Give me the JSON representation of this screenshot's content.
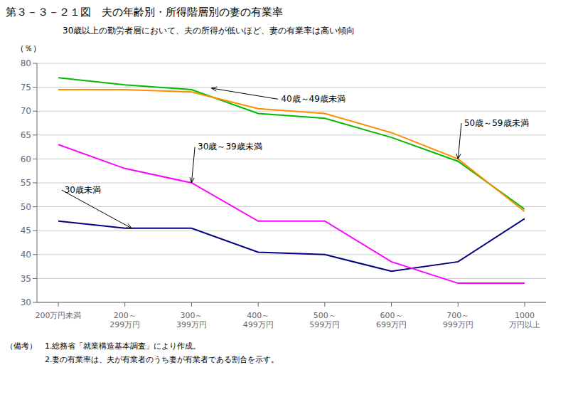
{
  "chart_data": {
    "type": "line",
    "title": "第３－３－２１図　夫の年齢別・所得階層別の妻の有業率",
    "subtitle": "30歳以上の勤労者層において、夫の所得が低いほど、妻の有業率は高い傾向",
    "y_label": "（％）",
    "notes": [
      "（備考）　1.総務省「就業構造基本調査」により作成。",
      "　　　　　2.妻の有業率は、夫が有業者のうち妻が有業者である割合を示す。"
    ],
    "categories": [
      "200万円未満",
      "200～\n299万円",
      "300～\n399万円",
      "400～\n499万円",
      "500～\n599万円",
      "600～\n699万円",
      "700～\n999万円",
      "1000\n万円以上"
    ],
    "ylim": [
      30,
      80
    ],
    "yticks": [
      30,
      35,
      40,
      45,
      50,
      55,
      60,
      65,
      70,
      75,
      80
    ],
    "grid": "y",
    "series": [
      {
        "name": "30歳未満",
        "color": "#000080",
        "values": [
          47.0,
          45.5,
          45.5,
          40.5,
          40.0,
          36.5,
          38.5,
          47.5
        ]
      },
      {
        "name": "30歳～39歳未満",
        "color": "#FF00FF",
        "values": [
          63.0,
          58.0,
          55.0,
          47.0,
          47.0,
          38.5,
          34.0,
          34.0
        ]
      },
      {
        "name": "40歳～49歳未満",
        "color": "#00BB00",
        "values": [
          77.0,
          75.5,
          74.5,
          69.5,
          68.5,
          64.5,
          59.5,
          49.5
        ]
      },
      {
        "name": "50歳～59歳未満",
        "color": "#FF8C00",
        "values": [
          74.5,
          74.5,
          74.0,
          70.5,
          69.5,
          65.5,
          60.0,
          49.0
        ]
      }
    ],
    "annotations": [
      {
        "text": "40歳～49歳未満",
        "x": 2.3,
        "y": 74.8,
        "text_x": 3.3,
        "text_y": 72.5
      },
      {
        "text": "50歳～59歳未満",
        "x": 6.0,
        "y": 60.0,
        "text_x": 6.05,
        "text_y": 67.5
      },
      {
        "text": "30歳～39歳未満",
        "x": 2.0,
        "y": 55.0,
        "text_x": 2.05,
        "text_y": 62.5
      },
      {
        "text": "30歳未満",
        "x": 1.1,
        "y": 45.5,
        "text_x": 0.05,
        "text_y": 53.5
      }
    ]
  }
}
